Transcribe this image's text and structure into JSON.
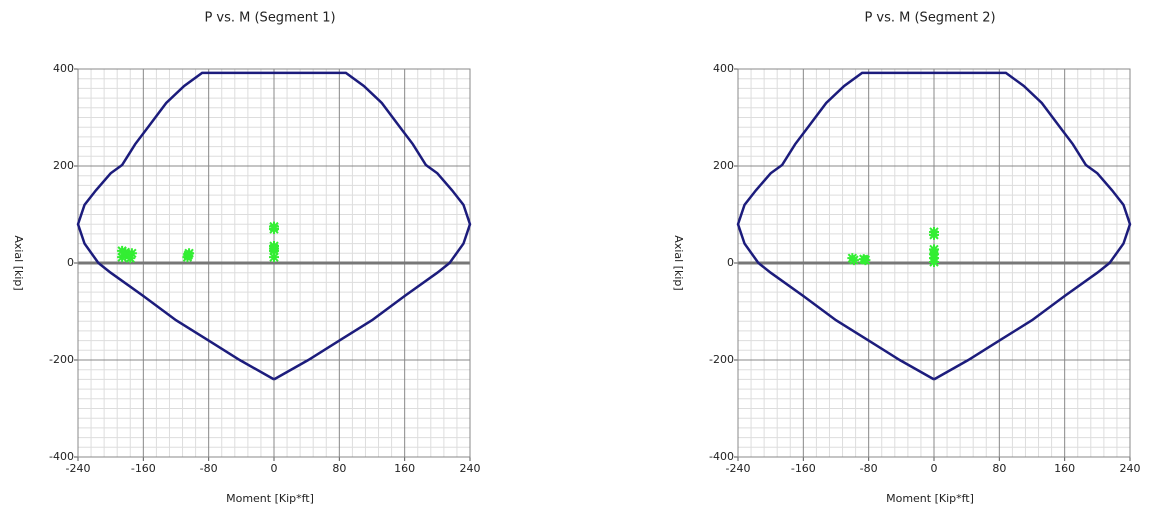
{
  "chart_data": [
    {
      "type": "scatter",
      "title": "P vs. M (Segment 1)",
      "x_label": "Moment [Kip*ft]",
      "y_label": "Axial [kip]",
      "xlim": [
        -240,
        240
      ],
      "ylim": [
        -400,
        400
      ],
      "xticks": [
        -240,
        -160,
        -80,
        0,
        80,
        160,
        240
      ],
      "yticks": [
        -400,
        -200,
        0,
        200,
        400
      ],
      "grid": true,
      "series": [
        {
          "type": "line",
          "color": "#1c1c7c",
          "x": [
            0,
            -42,
            -80,
            -120,
            -160,
            -200,
            -215,
            -232,
            -240,
            -232,
            -218,
            -200,
            -186,
            -170,
            -152,
            -132,
            -110,
            -88,
            88,
            110,
            132,
            152,
            170,
            186,
            200,
            218,
            232,
            240,
            232,
            215,
            200,
            160,
            120,
            80,
            42,
            0
          ],
          "values": [
            -240,
            -200,
            -160,
            -118,
            -68,
            -20,
            0,
            40,
            80,
            120,
            150,
            185,
            202,
            245,
            285,
            330,
            365,
            392,
            392,
            365,
            330,
            285,
            245,
            202,
            185,
            150,
            120,
            80,
            40,
            0,
            -20,
            -68,
            -118,
            -160,
            -200,
            -240
          ]
        },
        {
          "type": "scatter",
          "color": "#33ee33",
          "x": [
            -186,
            -182,
            -178,
            -174,
            -186,
            -176,
            -106,
            -104,
            -105,
            0,
            0,
            0,
            0,
            0,
            0
          ],
          "values": [
            12,
            22,
            15,
            20,
            25,
            10,
            12,
            20,
            16,
            12,
            25,
            35,
            30,
            70,
            75
          ]
        }
      ]
    },
    {
      "type": "scatter",
      "title": "P vs. M (Segment 2)",
      "x_label": "Moment [Kip*ft]",
      "y_label": "Axial [kip]",
      "xlim": [
        -240,
        240
      ],
      "ylim": [
        -400,
        400
      ],
      "xticks": [
        -240,
        -160,
        -80,
        0,
        80,
        160,
        240
      ],
      "yticks": [
        -400,
        -200,
        0,
        200,
        400
      ],
      "grid": true,
      "series": [
        {
          "type": "line",
          "color": "#1c1c7c",
          "x": [
            0,
            -42,
            -80,
            -120,
            -160,
            -200,
            -215,
            -232,
            -240,
            -232,
            -218,
            -200,
            -186,
            -170,
            -152,
            -132,
            -110,
            -88,
            88,
            110,
            132,
            152,
            170,
            186,
            200,
            218,
            232,
            240,
            232,
            215,
            200,
            160,
            120,
            80,
            42,
            0
          ],
          "values": [
            -240,
            -200,
            -160,
            -118,
            -68,
            -20,
            0,
            40,
            80,
            120,
            150,
            185,
            202,
            245,
            285,
            330,
            365,
            392,
            392,
            365,
            330,
            285,
            245,
            202,
            185,
            150,
            120,
            80,
            40,
            0,
            -20,
            -68,
            -118,
            -160,
            -200,
            -240
          ]
        },
        {
          "type": "scatter",
          "color": "#33ee33",
          "x": [
            -100,
            -98,
            -86,
            -84,
            0,
            0,
            0,
            0,
            0,
            0
          ],
          "values": [
            10,
            6,
            8,
            6,
            2,
            10,
            18,
            28,
            58,
            64
          ]
        }
      ]
    }
  ]
}
